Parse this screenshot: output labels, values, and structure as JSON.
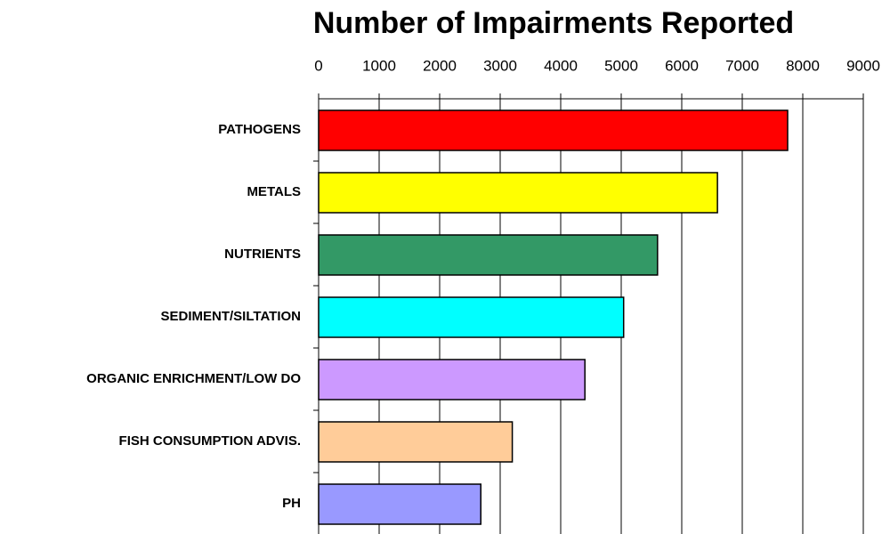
{
  "chart_data": {
    "type": "bar",
    "orientation": "horizontal",
    "title": "Number of Impairments Reported",
    "categories": [
      "PATHOGENS",
      "METALS",
      "NUTRIENTS",
      "SEDIMENT/SILTATION",
      "ORGANIC ENRICHMENT/LOW DO",
      "FISH CONSUMPTION ADVIS.",
      "PH"
    ],
    "values": [
      7750,
      6590,
      5600,
      5040,
      4400,
      3200,
      2680
    ],
    "colors": [
      "#ff0000",
      "#ffff00",
      "#339966",
      "#00ffff",
      "#cc99ff",
      "#ffcc99",
      "#9999ff"
    ],
    "xlim": [
      0,
      9000
    ],
    "xticks": [
      0,
      1000,
      2000,
      3000,
      4000,
      5000,
      6000,
      7000,
      8000,
      9000
    ],
    "grid": true
  }
}
